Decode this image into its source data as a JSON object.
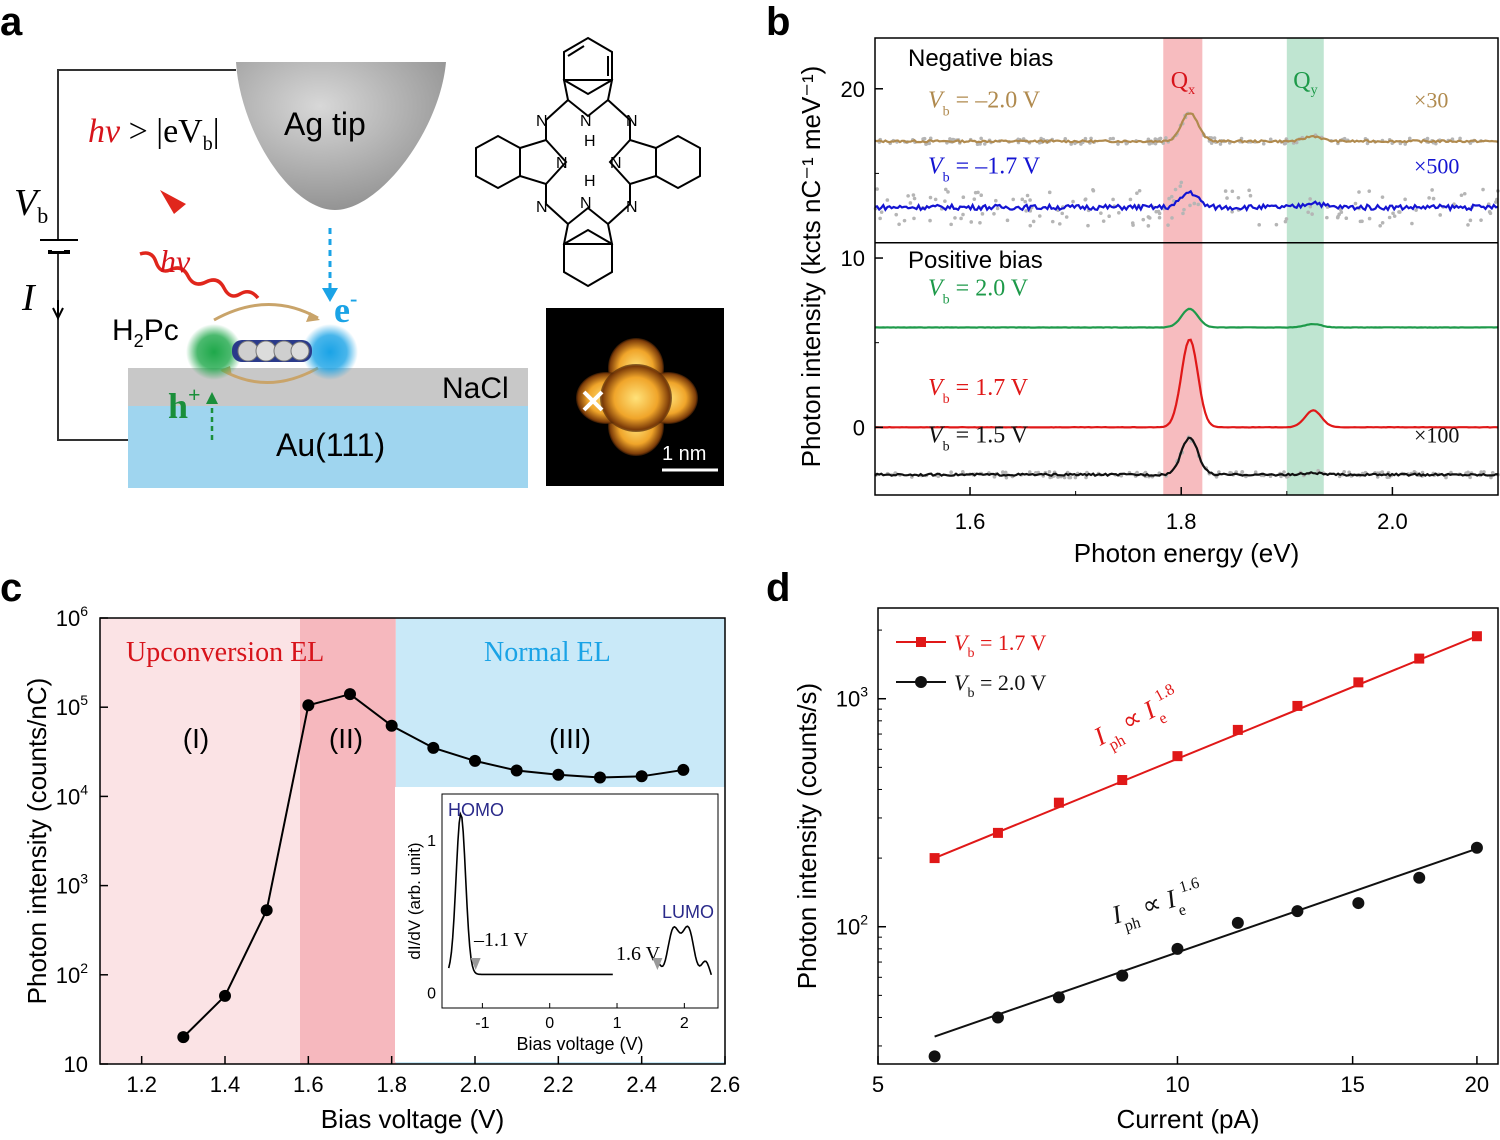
{
  "panels": {
    "a": "a",
    "b": "b",
    "c": "c",
    "d": "d"
  },
  "panel_a": {
    "tip_label": "Ag tip",
    "nacl_label": "NaCl",
    "au_label": "Au(111)",
    "molecule_label": "H",
    "molecule_sub": "2",
    "molecule_label2": "Pc",
    "vb_label": "V",
    "vb_sub": "b",
    "current_label": "I",
    "hv_label": "hν",
    "condition_label": "hν > |eV",
    "condition_sub": "b",
    "condition_end": "|",
    "electron_label": "e",
    "electron_sup": "-",
    "hole_label": "h",
    "hole_sup": "+",
    "scale_bar": "1 nm",
    "atom_N": "N",
    "atom_H": "H",
    "colors": {
      "tip": "#9a9a9a",
      "nacl": "#c8c8c8",
      "au": "#9fd5ef",
      "red": "#d7141b",
      "blue": "#1aa3e6",
      "green": "#1a8f3a",
      "arrow": "#c9a46a"
    }
  },
  "chart_data": [
    {
      "panel": "b",
      "type": "line",
      "xlabel": "Photon energy (eV)",
      "ylabel": "Photon intensity (kcts nC⁻¹ meV⁻¹)",
      "xlim": [
        1.51,
        2.1
      ],
      "xticks": [
        "1.6",
        "1.8",
        "2.0"
      ],
      "ylim": [
        -4,
        23
      ],
      "yticks": [
        "0",
        "10",
        "20"
      ],
      "section_labels": [
        "Negative bias",
        "Positive bias"
      ],
      "bands": [
        {
          "name": "Q",
          "sub": "x",
          "range": [
            1.783,
            1.82
          ],
          "color": "#f4a6aa"
        },
        {
          "name": "Q",
          "sub": "y",
          "range": [
            1.9,
            1.935
          ],
          "color": "#a9dcc2"
        }
      ],
      "series": [
        {
          "name": "V_b = –2.0 V",
          "label_v": "V",
          "label_sub": "b",
          "label_val": " = –2.0 V",
          "color": "#b08a4e",
          "baseline": 16.9,
          "peaks": [
            [
              1.808,
              1.7
            ],
            [
              1.925,
              0.3
            ]
          ],
          "scale": "×30"
        },
        {
          "name": "V_b = –1.7 V",
          "label_v": "V",
          "label_sub": "b",
          "label_val": " = –1.7 V",
          "color": "#1414d2",
          "baseline": 13.0,
          "peaks": [
            [
              1.808,
              0.9
            ],
            [
              1.925,
              0.3
            ]
          ],
          "scale": "×500"
        },
        {
          "name": "V_b = 2.0 V",
          "label_v": "V",
          "label_sub": "b",
          "label_val": " = 2.0 V",
          "color": "#1e9a4a",
          "baseline": 5.9,
          "peaks": [
            [
              1.808,
              1.1
            ],
            [
              1.925,
              0.2
            ]
          ],
          "scale": ""
        },
        {
          "name": "V_b = 1.7 V",
          "label_v": "V",
          "label_sub": "b",
          "label_val": " = 1.7 V",
          "color": "#e01818",
          "baseline": 0.0,
          "peaks": [
            [
              1.808,
              5.2
            ],
            [
              1.925,
              1.0
            ]
          ],
          "scale": ""
        },
        {
          "name": "V_b = 1.5 V",
          "label_v": "V",
          "label_sub": "b",
          "label_val": " = 1.5 V",
          "color": "#111111",
          "baseline": -2.8,
          "peaks": [
            [
              1.808,
              2.2
            ],
            [
              1.925,
              0.1
            ]
          ],
          "scale": "×100"
        }
      ]
    },
    {
      "panel": "c",
      "type": "line",
      "xlabel": "Bias voltage (V)",
      "ylabel": "Photon intensity (counts/nC)",
      "xlim": [
        1.1,
        2.6
      ],
      "xticks": [
        "1.2",
        "1.4",
        "1.6",
        "1.8",
        "2.0",
        "2.2",
        "2.4",
        "2.6"
      ],
      "yscale": "log",
      "ylim": [
        10,
        1000000
      ],
      "yticks": [
        {
          "base": "10",
          "exp": ""
        },
        {
          "base": "10",
          "exp": "2"
        },
        {
          "base": "10",
          "exp": "3"
        },
        {
          "base": "10",
          "exp": "4"
        },
        {
          "base": "10",
          "exp": "5"
        },
        {
          "base": "10",
          "exp": "6"
        }
      ],
      "regions": [
        {
          "label": "Upconversion EL",
          "color_text": "#d7141b"
        },
        {
          "label": "Normal EL",
          "color_text": "#1aa3e6"
        }
      ],
      "region_labels": [
        "(I)",
        "(II)",
        "(III)"
      ],
      "x": [
        1.3,
        1.4,
        1.5,
        1.6,
        1.7,
        1.8,
        1.9,
        2.0,
        2.1,
        2.2,
        2.3,
        2.4,
        2.5
      ],
      "y": [
        20,
        58,
        530,
        105000,
        140000,
        62000,
        35000,
        25000,
        19500,
        17500,
        16300,
        16800,
        19800
      ],
      "inset": {
        "xlabel": "Bias voltage (V)",
        "ylabel": "dI/dV (arb. unit)",
        "xticks": [
          "-1",
          "0",
          "1",
          "2"
        ],
        "yticks": [
          "0",
          "1"
        ],
        "homo": "HOMO",
        "lumo": "LUMO",
        "homo_v": "–1.1 V",
        "lumo_v": "1.6 V"
      }
    },
    {
      "panel": "d",
      "type": "scatter",
      "xlabel": "Current (pA)",
      "ylabel": "Photon intensity (counts/s)",
      "xscale": "log",
      "yscale": "log",
      "xlim": [
        5,
        21
      ],
      "xticks": [
        "5",
        "10",
        "15",
        "20"
      ],
      "ylim": [
        25,
        2500
      ],
      "yticks": [
        {
          "base": "10",
          "exp": "2"
        },
        {
          "base": "10",
          "exp": "3"
        }
      ],
      "series": [
        {
          "name": "V_b = 1.7 V",
          "label_v": "V",
          "label_sub": "b",
          "label_val": " = 1.7 V",
          "color": "#e01818",
          "marker": "square",
          "x": [
            5.7,
            6.6,
            7.6,
            8.8,
            10.0,
            11.5,
            13.2,
            15.2,
            17.5,
            20.0
          ],
          "y": [
            200,
            258,
            350,
            440,
            560,
            730,
            930,
            1180,
            1500,
            1880
          ],
          "fit": "I_ph ∝ I_e^1.8",
          "fit_exponent": "1.8"
        },
        {
          "name": "V_b = 2.0 V",
          "label_v": "V",
          "label_sub": "b",
          "label_val": " = 2.0 V",
          "color": "#111111",
          "marker": "circle",
          "x": [
            5.7,
            6.6,
            7.6,
            8.8,
            10.0,
            11.5,
            13.2,
            15.2,
            17.5,
            20.0
          ],
          "y": [
            27,
            40,
            49,
            61,
            80,
            104,
            117,
            127,
            164,
            222
          ],
          "fit": "I_ph ∝ I_e^1.6",
          "fit_exponent": "1.6"
        }
      ],
      "fit_text": {
        "I": "I",
        "ph": "ph",
        "prop": " ∝ ",
        "Ie": "I",
        "e": "e"
      }
    }
  ]
}
